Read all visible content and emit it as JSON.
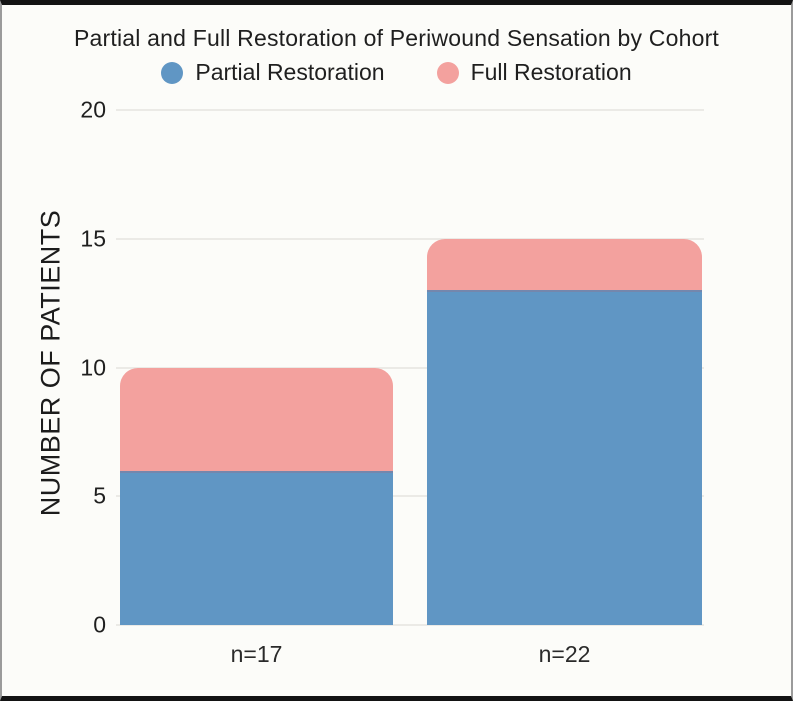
{
  "chart": {
    "title": "Partial and Full Restoration of Periwound Sensation by Cohort",
    "ylabel": "NUMBER OF PATIENTS",
    "legend": [
      {
        "label": "Partial Restoration",
        "color": "#6096c4"
      },
      {
        "label": "Full Restoration",
        "color": "#f3a19e"
      }
    ]
  },
  "chart_data": {
    "type": "bar",
    "stacked": true,
    "title": "Partial and Full Restoration of Periwound Sensation by Cohort",
    "categories": [
      "n=17",
      "n=22"
    ],
    "series": [
      {
        "name": "Partial Restoration",
        "color": "#6096c4",
        "values": [
          6,
          13
        ]
      },
      {
        "name": "Full Restoration",
        "color": "#f3a19e",
        "values": [
          4,
          2
        ]
      }
    ],
    "xlabel": "",
    "ylabel": "NUMBER OF PATIENTS",
    "ylim": [
      0,
      20
    ],
    "yticks": [
      0,
      5,
      10,
      15,
      20
    ],
    "grid": true,
    "legend_position": "top",
    "colors": {
      "background": "#fcfcf9",
      "gridline": "#ebeae6",
      "text": "#1f1f1f",
      "frame_border": "#131313"
    }
  }
}
